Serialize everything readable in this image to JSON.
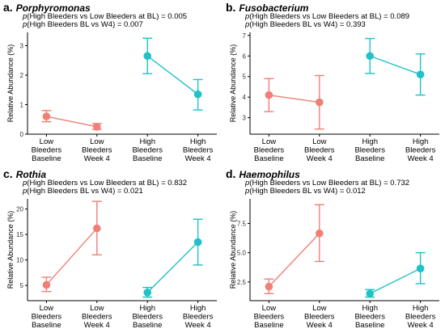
{
  "colors": {
    "low": "#f07f76",
    "high": "#1ec2c7"
  },
  "chart_data": [
    {
      "type": "line",
      "panel_letter": "a.",
      "genus": "Porphyromonas",
      "p_prefix": "p",
      "p_line1": "(High Bleeders vs Low Bleeders at BL) = 0.005",
      "p_line2": "(High Bleeders BL vs W4) = 0.007",
      "ylabel": "Relative Abundance (%)",
      "ylim": [
        0,
        3.45
      ],
      "yticks": [
        "0",
        "1",
        "2",
        "3"
      ],
      "ytick_values": [
        0,
        1,
        2,
        3
      ],
      "categories": [
        [
          "Low",
          "Bleeders",
          "Baseline"
        ],
        [
          "Low",
          "Bleeders",
          "Week 4"
        ],
        [
          "High",
          "Bleeders",
          "Baseline"
        ],
        [
          "High",
          "Bleeders",
          "Week 4"
        ]
      ],
      "series": [
        {
          "group": "low",
          "points": [
            {
              "x": 0,
              "y": 0.6,
              "lo": 0.42,
              "hi": 0.8
            },
            {
              "x": 1,
              "y": 0.25,
              "lo": 0.16,
              "hi": 0.36
            }
          ]
        },
        {
          "group": "high",
          "points": [
            {
              "x": 2,
              "y": 2.65,
              "lo": 2.05,
              "hi": 3.25
            },
            {
              "x": 3,
              "y": 1.35,
              "lo": 0.82,
              "hi": 1.85
            }
          ]
        }
      ]
    },
    {
      "type": "line",
      "panel_letter": "b.",
      "genus": "Fusobacterium",
      "p_prefix": "p",
      "p_line1": "(High Bleeders vs Low Bleeders at BL) = 0.089",
      "p_line2": "(High Bleeders BL vs W4) = 0.393",
      "ylabel": "Relative Abundance (%)",
      "ylim": [
        2.2,
        7.15
      ],
      "yticks": [
        "3",
        "4",
        "5",
        "6",
        "7"
      ],
      "ytick_values": [
        3,
        4,
        5,
        6,
        7
      ],
      "categories": [
        [
          "Low",
          "Bleeders",
          "Baseline"
        ],
        [
          "Low",
          "Bleeders",
          "Week 4"
        ],
        [
          "High",
          "Bleeders",
          "Baseline"
        ],
        [
          "High",
          "Bleeders",
          "Week 4"
        ]
      ],
      "series": [
        {
          "group": "low",
          "points": [
            {
              "x": 0,
              "y": 4.1,
              "lo": 3.3,
              "hi": 4.9
            },
            {
              "x": 1,
              "y": 3.75,
              "lo": 2.45,
              "hi": 5.05
            }
          ]
        },
        {
          "group": "high",
          "points": [
            {
              "x": 2,
              "y": 6.0,
              "lo": 5.15,
              "hi": 6.85
            },
            {
              "x": 3,
              "y": 5.1,
              "lo": 4.1,
              "hi": 6.1
            }
          ]
        }
      ]
    },
    {
      "type": "line",
      "panel_letter": "c.",
      "genus": "Rothia",
      "p_prefix": "p",
      "p_line1": "(High Bleeders vs Low Bleeders at BL) = 0.832",
      "p_line2": "(High Bleeders BL vs W4) = 0.021",
      "ylabel": "Relative Abundance (%)",
      "ylim": [
        2.0,
        22.0
      ],
      "yticks": [
        "5",
        "10",
        "15",
        "20"
      ],
      "ytick_values": [
        5,
        10,
        15,
        20
      ],
      "categories": [
        [
          "Low",
          "Bleeders",
          "Baseline"
        ],
        [
          "Low",
          "Bleeders",
          "Week 4"
        ],
        [
          "High",
          "Bleeders",
          "Baseline"
        ],
        [
          "High",
          "Bleeders",
          "Week 4"
        ]
      ],
      "series": [
        {
          "group": "low",
          "points": [
            {
              "x": 0,
              "y": 5.1,
              "lo": 3.8,
              "hi": 6.6
            },
            {
              "x": 1,
              "y": 16.2,
              "lo": 11.0,
              "hi": 21.5
            }
          ]
        },
        {
          "group": "high",
          "points": [
            {
              "x": 2,
              "y": 3.6,
              "lo": 2.7,
              "hi": 4.6
            },
            {
              "x": 3,
              "y": 13.5,
              "lo": 9.0,
              "hi": 18.0
            }
          ]
        }
      ]
    },
    {
      "type": "line",
      "panel_letter": "d.",
      "genus": "Haemophilus",
      "p_prefix": "p",
      "p_line1": "(High Bleeders vs Low Bleeders at BL) = 0.732",
      "p_line2": "(High Bleeders BL vs W4) = 0.012",
      "ylabel": "Relative Abundance (%)",
      "ylim": [
        0.9,
        9.6
      ],
      "yticks": [
        "2.5",
        "5.0",
        "7.5"
      ],
      "ytick_values": [
        2.5,
        5.0,
        7.5
      ],
      "categories": [
        [
          "Low",
          "Bleeders",
          "Baseline"
        ],
        [
          "Low",
          "Bleeders",
          "Week 4"
        ],
        [
          "High",
          "Bleeders",
          "Baseline"
        ],
        [
          "High",
          "Bleeders",
          "Week 4"
        ]
      ],
      "series": [
        {
          "group": "low",
          "points": [
            {
              "x": 0,
              "y": 2.1,
              "lo": 1.5,
              "hi": 2.75
            },
            {
              "x": 1,
              "y": 6.65,
              "lo": 4.25,
              "hi": 9.1
            }
          ]
        },
        {
          "group": "high",
          "points": [
            {
              "x": 2,
              "y": 1.5,
              "lo": 1.2,
              "hi": 1.85
            },
            {
              "x": 3,
              "y": 3.65,
              "lo": 2.35,
              "hi": 5.0
            }
          ]
        }
      ]
    }
  ]
}
